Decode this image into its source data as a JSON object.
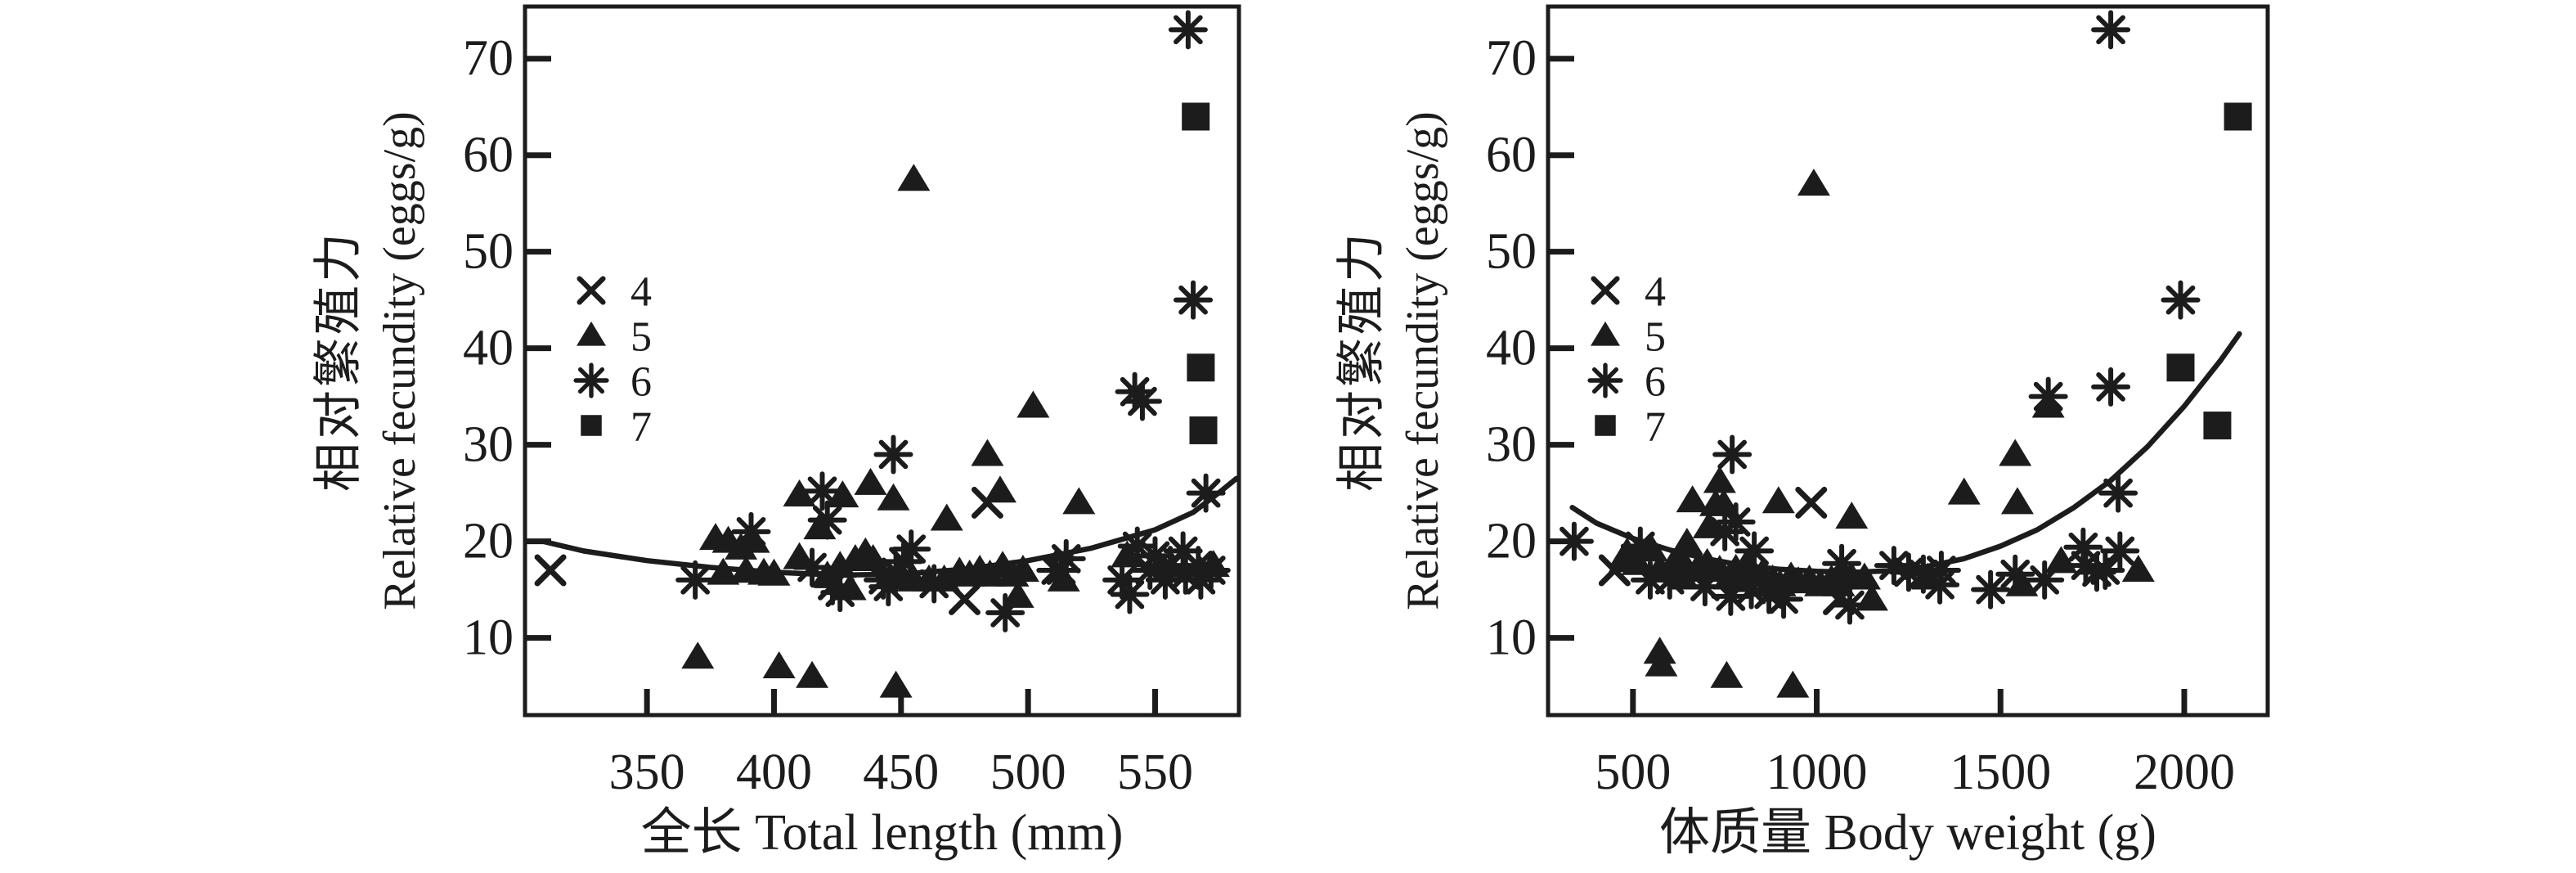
{
  "page": {
    "background": "#ffffff",
    "ink": "#1c1c1c"
  },
  "legend": {
    "items": [
      {
        "marker": "cross-icon",
        "label": "4"
      },
      {
        "marker": "triangle-icon",
        "label": "5"
      },
      {
        "marker": "asterisk-icon",
        "label": "6"
      },
      {
        "marker": "square-icon",
        "label": "7"
      }
    ]
  },
  "chart_data": [
    {
      "id": "fecundity-vs-total-length",
      "type": "scatter",
      "title": "",
      "xlabel": "全长 Total length (mm)",
      "ylabel_zh": "相对繁殖力",
      "ylabel_en": "Relative fecundity (eggs/g)",
      "xlim": [
        302,
        583
      ],
      "ylim": [
        2,
        75.4
      ],
      "xticks": [
        350,
        400,
        450,
        500,
        550
      ],
      "yticks": [
        10,
        20,
        30,
        40,
        50,
        60,
        70
      ],
      "grid": false,
      "legend_position": "upper-left-inside",
      "series": [
        {
          "name": "4",
          "marker": "cross",
          "points": [
            [
              312,
              17
            ],
            [
              484,
              24
            ],
            [
              475,
              14
            ]
          ]
        },
        {
          "name": "5",
          "marker": "triangle",
          "points": [
            [
              370,
              8
            ],
            [
              402,
              7
            ],
            [
              415,
              6
            ],
            [
              448,
              5
            ],
            [
              455,
              57.5
            ],
            [
              377,
              20.3
            ],
            [
              382,
              20
            ],
            [
              387,
              19.3
            ],
            [
              392,
              20
            ],
            [
              380,
              16.7
            ],
            [
              389,
              16.9
            ],
            [
              396,
              16.7
            ],
            [
              400,
              16.6
            ],
            [
              410,
              18.3
            ],
            [
              410,
              24.8
            ],
            [
              418,
              21.4
            ],
            [
              421,
              16.4
            ],
            [
              426,
              17.4
            ],
            [
              427,
              24.7
            ],
            [
              430,
              15.1
            ],
            [
              432,
              18.1
            ],
            [
              436,
              18.8
            ],
            [
              438,
              26
            ],
            [
              439,
              18.1
            ],
            [
              447,
              24.4
            ],
            [
              450,
              16.5
            ],
            [
              455,
              16
            ],
            [
              461,
              16
            ],
            [
              467,
              16
            ],
            [
              468,
              22.3
            ],
            [
              473,
              16.8
            ],
            [
              477,
              16.5
            ],
            [
              481,
              17
            ],
            [
              484,
              29
            ],
            [
              485,
              16.5
            ],
            [
              489,
              25.2
            ],
            [
              490,
              17.4
            ],
            [
              494,
              16.5
            ],
            [
              496,
              14.3
            ],
            [
              498,
              17
            ],
            [
              502,
              34
            ],
            [
              514,
              16
            ],
            [
              520,
              24
            ],
            [
              539,
              18.5
            ],
            [
              573,
              17.5
            ]
          ]
        },
        {
          "name": "6",
          "marker": "asterisk",
          "points": [
            [
              369,
              16
            ],
            [
              391,
              21
            ],
            [
              415,
              17.3
            ],
            [
              419,
              25.2
            ],
            [
              421,
              22.2
            ],
            [
              423,
              15.4
            ],
            [
              426,
              14.7
            ],
            [
              443,
              16
            ],
            [
              445,
              15.3
            ],
            [
              447,
              29
            ],
            [
              448,
              16.8
            ],
            [
              451,
              17.9
            ],
            [
              454,
              19.2
            ],
            [
              463,
              15.6
            ],
            [
              491,
              12.6
            ],
            [
              511,
              17
            ],
            [
              513,
              17
            ],
            [
              515,
              18.2
            ],
            [
              537,
              16
            ],
            [
              540,
              14.5
            ],
            [
              542,
              35.5
            ],
            [
              543,
              19.5
            ],
            [
              545,
              34.5
            ],
            [
              548,
              17
            ],
            [
              550,
              18.5
            ],
            [
              554,
              16
            ],
            [
              556,
              17.5
            ],
            [
              561,
              19
            ],
            [
              562,
              16.5
            ],
            [
              563,
              73
            ],
            [
              565,
              45
            ],
            [
              567,
              17.5
            ],
            [
              568,
              16
            ],
            [
              570,
              25
            ],
            [
              572,
              17
            ]
          ]
        },
        {
          "name": "7",
          "marker": "square",
          "points": [
            [
              566,
              64
            ],
            [
              568,
              38
            ],
            [
              569,
              31.5
            ]
          ]
        }
      ],
      "trend_curve": [
        [
          309,
          20
        ],
        [
          325,
          19
        ],
        [
          350,
          18
        ],
        [
          375,
          17.3
        ],
        [
          400,
          16.8
        ],
        [
          425,
          16.5
        ],
        [
          450,
          16.6
        ],
        [
          475,
          17.1
        ],
        [
          500,
          18
        ],
        [
          525,
          19.3
        ],
        [
          550,
          21.2
        ],
        [
          565,
          23
        ],
        [
          575,
          25
        ],
        [
          582,
          26.5
        ]
      ]
    },
    {
      "id": "fecundity-vs-body-weight",
      "type": "scatter",
      "title": "",
      "xlabel": "体质量 Body weight (g)",
      "ylabel_zh": "相对繁殖力",
      "ylabel_en": "Relative fecundity (eggs/g)",
      "xlim": [
        269,
        2227
      ],
      "ylim": [
        2,
        75.4
      ],
      "xticks": [
        500,
        1000,
        1500,
        2000
      ],
      "yticks": [
        10,
        20,
        30,
        40,
        50,
        60,
        70
      ],
      "grid": false,
      "legend_position": "upper-left-inside",
      "series": [
        {
          "name": "4",
          "marker": "cross",
          "points": [
            [
              450,
              17
            ],
            [
              985,
              24
            ],
            [
              1060,
              14
            ]
          ]
        },
        {
          "name": "5",
          "marker": "triangle",
          "points": [
            [
              573,
              8.5
            ],
            [
              577,
              7.2
            ],
            [
              755,
              6
            ],
            [
              935,
              5
            ],
            [
              992,
              57
            ],
            [
              478,
              18
            ],
            [
              484,
              18.8
            ],
            [
              513,
              17.7
            ],
            [
              551,
              19.1
            ],
            [
              573,
              17.1
            ],
            [
              611,
              17.7
            ],
            [
              633,
              18
            ],
            [
              636,
              16.2
            ],
            [
              647,
              19.8
            ],
            [
              662,
              24.2
            ],
            [
              673,
              17
            ],
            [
              702,
              17.7
            ],
            [
              707,
              21.5
            ],
            [
              725,
              23.8
            ],
            [
              736,
              26.2
            ],
            [
              736,
              17
            ],
            [
              747,
              23.8
            ],
            [
              762,
              16.2
            ],
            [
              780,
              17.1
            ],
            [
              796,
              16
            ],
            [
              811,
              17.7
            ],
            [
              826,
              16.8
            ],
            [
              850,
              16.5
            ],
            [
              880,
              16
            ],
            [
              896,
              24.1
            ],
            [
              900,
              15.5
            ],
            [
              930,
              16.3
            ],
            [
              950,
              15.8
            ],
            [
              980,
              16
            ],
            [
              1010,
              15.5
            ],
            [
              1040,
              16
            ],
            [
              1060,
              15.5
            ],
            [
              1094,
              16.3
            ],
            [
              1095,
              22.5
            ],
            [
              1130,
              16.2
            ],
            [
              1150,
              14
            ],
            [
              1302,
              16.2
            ],
            [
              1401,
              25
            ],
            [
              1540,
              29
            ],
            [
              1546,
              24
            ],
            [
              1558,
              15.5
            ],
            [
              1630,
              34
            ],
            [
              1665,
              17.9
            ],
            [
              1875,
              17
            ]
          ]
        },
        {
          "name": "6",
          "marker": "asterisk",
          "points": [
            [
              340,
              20
            ],
            [
              520,
              19.5
            ],
            [
              547,
              16
            ],
            [
              600,
              16
            ],
            [
              696,
              15.3
            ],
            [
              750,
              21
            ],
            [
              766,
              14.3
            ],
            [
              770,
              29
            ],
            [
              780,
              22
            ],
            [
              822,
              15
            ],
            [
              830,
              19
            ],
            [
              870,
              14.5
            ],
            [
              910,
              14
            ],
            [
              1068,
              17.7
            ],
            [
              1090,
              13.4
            ],
            [
              1210,
              17.5
            ],
            [
              1250,
              16.8
            ],
            [
              1290,
              16.6
            ],
            [
              1335,
              15.5
            ],
            [
              1339,
              17
            ],
            [
              1473,
              15
            ],
            [
              1540,
              16.6
            ],
            [
              1620,
              16
            ],
            [
              1630,
              35
            ],
            [
              1725,
              19.4
            ],
            [
              1732,
              17.5
            ],
            [
              1762,
              16.8
            ],
            [
              1785,
              17
            ],
            [
              1800,
              36
            ],
            [
              1800,
              73
            ],
            [
              1820,
              25
            ],
            [
              1825,
              19
            ],
            [
              1990,
              45
            ]
          ]
        },
        {
          "name": "7",
          "marker": "square",
          "points": [
            [
              1990,
              38
            ],
            [
              2090,
              32
            ],
            [
              2146,
              64
            ]
          ]
        }
      ],
      "trend_curve": [
        [
          335,
          23.5
        ],
        [
          400,
          21.9
        ],
        [
          500,
          20.3
        ],
        [
          600,
          19.1
        ],
        [
          700,
          18.2
        ],
        [
          800,
          17.5
        ],
        [
          900,
          17.1
        ],
        [
          1000,
          16.9
        ],
        [
          1100,
          16.8
        ],
        [
          1200,
          16.95
        ],
        [
          1300,
          17.4
        ],
        [
          1400,
          18.2
        ],
        [
          1500,
          19.5
        ],
        [
          1600,
          21.2
        ],
        [
          1700,
          23.5
        ],
        [
          1800,
          26.3
        ],
        [
          1900,
          29.8
        ],
        [
          2000,
          34
        ],
        [
          2100,
          38.8
        ],
        [
          2150,
          41.5
        ]
      ]
    }
  ]
}
